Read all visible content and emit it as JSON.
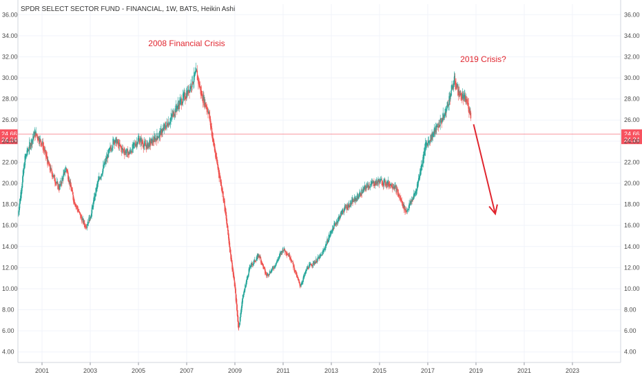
{
  "chart_data": {
    "type": "candlestick",
    "title": "SPDR SELECT SECTOR FUND - FINANCIAL, 1W, BATS, Heikin Ashi",
    "xlabel": "",
    "ylabel": "",
    "xlim": [
      2000.0,
      2025.0
    ],
    "ylim": [
      3.0,
      37.0
    ],
    "y_ticks": [
      "36.00",
      "34.00",
      "32.00",
      "30.00",
      "28.00",
      "26.00",
      "24.00",
      "22.00",
      "20.00",
      "18.00",
      "16.00",
      "14.00",
      "12.00",
      "10.00",
      "8.00",
      "6.00",
      "4.00"
    ],
    "x_ticks": [
      "2001",
      "2003",
      "2005",
      "2007",
      "2009",
      "2011",
      "2013",
      "2015",
      "2017",
      "2019",
      "2021",
      "2023"
    ],
    "price_lines": [
      {
        "value": 24.66,
        "label": "24.66",
        "color": "#f7525f"
      },
      {
        "value": 24.24,
        "label": "24.24",
        "color": "#f7525f"
      }
    ],
    "series": [
      {
        "x": [
          2000.0,
          2000.3,
          2000.7,
          2001.0,
          2001.3,
          2001.7,
          2002.0,
          2002.3,
          2002.6,
          2002.8,
          2003.0,
          2003.3,
          2003.7,
          2004.0,
          2004.3,
          2004.6,
          2005.0,
          2005.3,
          2005.6,
          2006.0,
          2006.3,
          2006.6,
          2007.0,
          2007.4,
          2007.6,
          2007.9,
          2008.2,
          2008.5,
          2008.8,
          2009.0,
          2009.15,
          2009.3,
          2009.6,
          2010.0,
          2010.3,
          2010.6,
          2011.0,
          2011.3,
          2011.7,
          2012.0,
          2012.3,
          2012.6,
          2013.0,
          2013.5,
          2014.0,
          2014.5,
          2015.0,
          2015.3,
          2015.6,
          2016.1,
          2016.5,
          2016.9,
          2017.3,
          2017.7,
          2018.1,
          2018.3,
          2018.6,
          2018.8
        ],
        "y": [
          17.0,
          22.5,
          24.8,
          23.8,
          21.5,
          19.5,
          21.5,
          18.5,
          16.8,
          15.9,
          16.8,
          20.0,
          22.5,
          24.2,
          23.2,
          22.8,
          24.2,
          23.5,
          24.0,
          25.0,
          26.0,
          27.3,
          28.5,
          30.5,
          28.5,
          26.8,
          22.5,
          19.0,
          13.5,
          10.0,
          6.0,
          9.0,
          12.0,
          13.2,
          11.2,
          12.0,
          13.8,
          13.0,
          10.2,
          12.0,
          12.5,
          13.2,
          15.5,
          17.5,
          18.5,
          19.8,
          20.2,
          20.0,
          19.8,
          17.3,
          19.2,
          23.5,
          25.0,
          26.5,
          29.8,
          28.5,
          27.8,
          26.5
        ],
        "color": "#26a69a"
      }
    ],
    "annotations": [
      {
        "text": "2008 Financial Crisis",
        "x": 2007.0,
        "y": 33.0,
        "color": "#e0252e"
      },
      {
        "text": "2019 Crisis?",
        "x": 2019.3,
        "y": 31.5,
        "color": "#e0252e"
      }
    ],
    "arrow": {
      "from": [
        2018.9,
        25.6
      ],
      "to": [
        2019.8,
        17.1
      ],
      "color": "#e0252e"
    },
    "colors": {
      "up": "#26a69a",
      "down": "#ef5350",
      "grid": "#f0f3fa",
      "axis": "#9598a1"
    }
  }
}
